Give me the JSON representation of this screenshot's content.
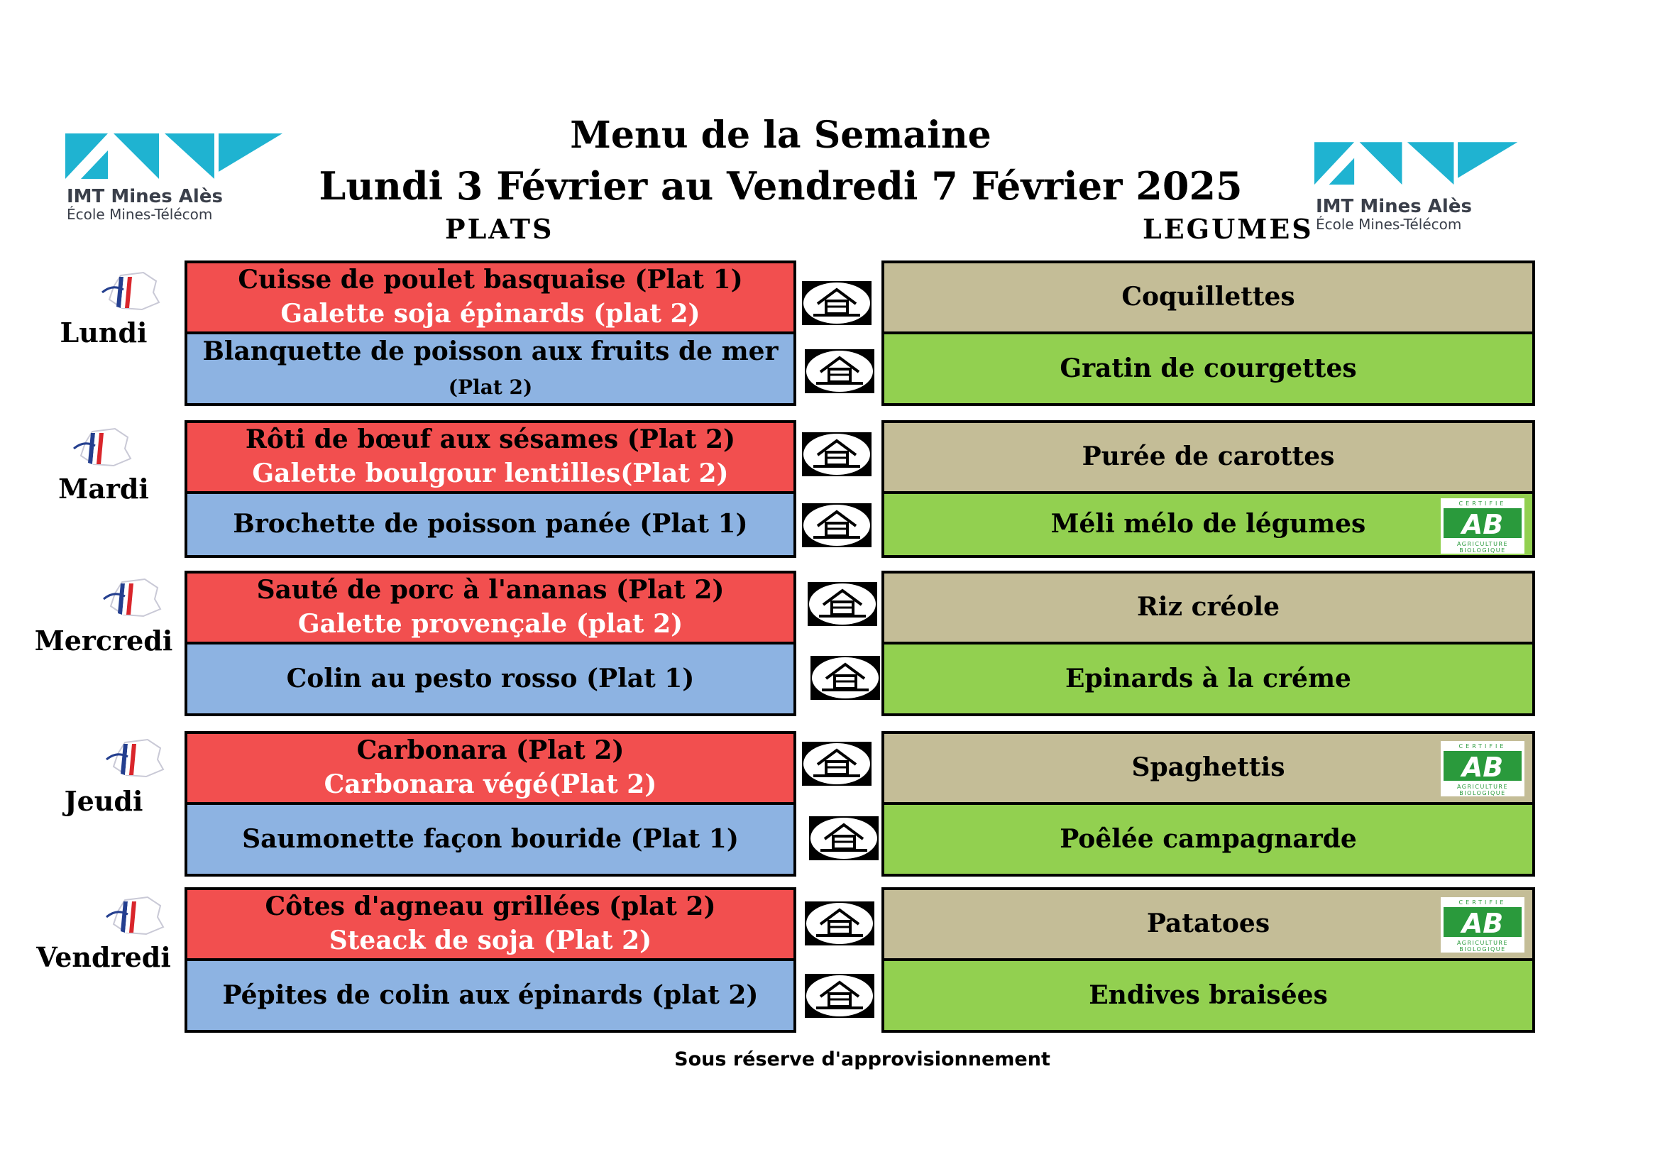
{
  "header": {
    "title_line1": "Menu de la Semaine",
    "title_line2": "Lundi 3 Février  au Vendredi 7  Février 2025",
    "col_plats": "PLATS",
    "col_legumes": "LEGUMES"
  },
  "logo": {
    "brand": "IMT Mines Alès",
    "sub": "École Mines-Télécom",
    "color": "#1fb3d1"
  },
  "days": [
    {
      "name": "Lundi",
      "plat1_line1": "Cuisse de poulet basquaise  (Plat 1)",
      "plat1_line2": "Galette soja épinards (plat 2)",
      "plat2_main": "Blanquette de poisson aux fruits de mer",
      "plat2_tag": "(Plat 2)",
      "leg1": "Coquillettes",
      "leg2": "Gratin de courgettes"
    },
    {
      "name": "Mardi",
      "plat1_line1": "Rôti de bœuf aux sésames  (Plat 2)",
      "plat1_line2": "Galette boulgour lentilles(Plat 2)",
      "plat2_main": "Brochette de poisson panée (Plat 1)",
      "leg1": "Purée de carottes",
      "leg2": "Méli mélo de légumes"
    },
    {
      "name": "Mercredi",
      "plat1_line1": "Sauté de porc à l'ananas (Plat 2)",
      "plat1_line2": "Galette provençale (plat 2)",
      "plat2_main": "Colin au pesto rosso   (Plat 1)",
      "leg1": "Riz créole",
      "leg2": "Epinards à la créme"
    },
    {
      "name": "Jeudi",
      "plat1_line1": "Carbonara (Plat 2)",
      "plat1_line2": "Carbonara végé(Plat 2)",
      "plat2_main": "Saumonette façon bouride (Plat 1)",
      "leg1": "Spaghettis",
      "leg2": "Poêlée campagnarde"
    },
    {
      "name": "Vendredi",
      "plat1_line1": "Côtes d'agneau grillées (plat 2)",
      "plat1_line2": "Steack de soja (Plat 2)",
      "plat2_main": "Pépites de colin aux épinards  (plat 2)",
      "leg1": "Patatoes",
      "leg2": "Endives braisées"
    }
  ],
  "badges": {
    "vf_line1": "Viande",
    "vf_line2": "d'origine",
    "vf_line3": "Française",
    "ab_top": "CERTIFIE",
    "ab_mark": "AB",
    "ab_bottom1": "AGRICULTURE",
    "ab_bottom2": "BIOLOGIQUE"
  },
  "footer": "Sous réserve d'approvisionnement"
}
